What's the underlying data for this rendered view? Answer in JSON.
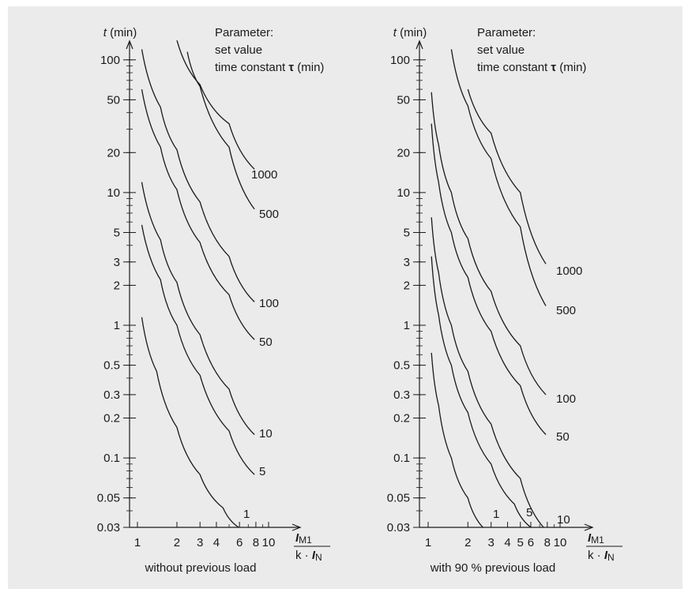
{
  "chart_data": [
    {
      "type": "line",
      "title": "",
      "y_axis": {
        "label_symbol": "t",
        "label_unit": "(min)",
        "scale": "log",
        "ylim": [
          0.03,
          160
        ],
        "ticks": [
          0.03,
          0.05,
          0.1,
          0.2,
          0.3,
          0.5,
          1,
          2,
          3,
          5,
          10,
          20,
          50,
          100
        ],
        "tick_labels": [
          "0.03",
          "0.05",
          "0.1",
          "0.2",
          "0.3",
          "0.5",
          "1",
          "2",
          "3",
          "5",
          "10",
          "20",
          "50",
          "100"
        ]
      },
      "x_axis": {
        "scale": "log",
        "xlim": [
          1,
          12
        ],
        "ticks": [
          1,
          2,
          3,
          4,
          6,
          8,
          10
        ],
        "tick_labels": [
          "1",
          "2",
          "3",
          "4",
          "6",
          "8",
          "10"
        ],
        "label_numerator_symbol": "I",
        "label_numerator_sub": "M1",
        "label_denominator_k": "k ·",
        "label_denominator_symbol": "I",
        "label_denominator_sub": "N"
      },
      "legend_text": [
        "Parameter:",
        "set value",
        "time constant τ (min)"
      ],
      "caption": "without previous load",
      "series": [
        {
          "name": "1",
          "points": [
            [
              1.08,
              1.15
            ],
            [
              1.4,
              0.45
            ],
            [
              2.0,
              0.17
            ],
            [
              3.0,
              0.075
            ],
            [
              4.5,
              0.042
            ],
            [
              5.9,
              0.03
            ]
          ]
        },
        {
          "name": "5",
          "points": [
            [
              1.08,
              5.7
            ],
            [
              1.5,
              2.2
            ],
            [
              2.0,
              1.0
            ],
            [
              3.0,
              0.42
            ],
            [
              5.0,
              0.16
            ],
            [
              7.8,
              0.075
            ]
          ]
        },
        {
          "name": "10",
          "points": [
            [
              1.08,
              12
            ],
            [
              1.5,
              4.4
            ],
            [
              2.0,
              2.1
            ],
            [
              3.0,
              0.85
            ],
            [
              5.0,
              0.33
            ],
            [
              7.8,
              0.15
            ]
          ]
        },
        {
          "name": "50",
          "points": [
            [
              1.08,
              60
            ],
            [
              1.5,
              22
            ],
            [
              2.0,
              10.5
            ],
            [
              3.0,
              4.2
            ],
            [
              5.0,
              1.7
            ],
            [
              7.8,
              0.78
            ]
          ]
        },
        {
          "name": "100",
          "points": [
            [
              1.08,
              120
            ],
            [
              1.5,
              44
            ],
            [
              2.0,
              21
            ],
            [
              3.0,
              8.5
            ],
            [
              5.0,
              3.3
            ],
            [
              7.8,
              1.5
            ]
          ]
        },
        {
          "name": "500",
          "points": [
            [
              2.4,
              115
            ],
            [
              3.0,
              63
            ],
            [
              5.0,
              22
            ],
            [
              7.8,
              7.5
            ]
          ]
        },
        {
          "name": "1000",
          "points": [
            [
              2.0,
              140
            ],
            [
              3.0,
              65
            ],
            [
              5.0,
              33
            ],
            [
              7.8,
              15
            ]
          ]
        }
      ]
    },
    {
      "type": "line",
      "title": "",
      "y_axis": {
        "label_symbol": "t",
        "label_unit": "(min)",
        "scale": "log",
        "ylim": [
          0.03,
          160
        ],
        "ticks": [
          0.03,
          0.05,
          0.1,
          0.2,
          0.3,
          0.5,
          1,
          2,
          3,
          5,
          10,
          20,
          50,
          100
        ],
        "tick_labels": [
          "0.03",
          "0.05",
          "0.1",
          "0.2",
          "0.3",
          "0.5",
          "1",
          "2",
          "3",
          "5",
          "10",
          "20",
          "50",
          "100"
        ]
      },
      "x_axis": {
        "scale": "log",
        "xlim": [
          1,
          12
        ],
        "ticks": [
          1,
          2,
          3,
          4,
          5,
          6,
          8,
          10
        ],
        "tick_labels": [
          "1",
          "2",
          "3",
          "4",
          "5",
          "6",
          "8",
          "10"
        ],
        "label_numerator_symbol": "I",
        "label_numerator_sub": "M1",
        "label_denominator_k": "k ·",
        "label_denominator_symbol": "I",
        "label_denominator_sub": "N"
      },
      "legend_text": [
        "Parameter:",
        "set value",
        "time constant τ (min)"
      ],
      "caption": "with 90 % previous load",
      "series": [
        {
          "name": "1",
          "points": [
            [
              1.06,
              0.62
            ],
            [
              1.2,
              0.25
            ],
            [
              1.5,
              0.1
            ],
            [
              2.0,
              0.05
            ],
            [
              2.6,
              0.03
            ]
          ]
        },
        {
          "name": "5",
          "points": [
            [
              1.06,
              3.3
            ],
            [
              1.2,
              1.2
            ],
            [
              1.5,
              0.5
            ],
            [
              2.0,
              0.22
            ],
            [
              3.0,
              0.09
            ],
            [
              4.5,
              0.045
            ],
            [
              6.0,
              0.03
            ]
          ]
        },
        {
          "name": "10",
          "points": [
            [
              1.06,
              6.5
            ],
            [
              1.2,
              2.5
            ],
            [
              1.5,
              1.0
            ],
            [
              2.0,
              0.45
            ],
            [
              3.0,
              0.18
            ],
            [
              5.0,
              0.07
            ],
            [
              7.5,
              0.03
            ]
          ]
        },
        {
          "name": "50",
          "points": [
            [
              1.06,
              33
            ],
            [
              1.2,
              12
            ],
            [
              1.5,
              5.0
            ],
            [
              2.0,
              2.3
            ],
            [
              3.0,
              0.9
            ],
            [
              5.0,
              0.35
            ],
            [
              7.8,
              0.15
            ]
          ]
        },
        {
          "name": "100",
          "points": [
            [
              1.06,
              57
            ],
            [
              1.2,
              23
            ],
            [
              1.5,
              10
            ],
            [
              2.0,
              4.5
            ],
            [
              3.0,
              1.8
            ],
            [
              5.0,
              0.7
            ],
            [
              7.8,
              0.3
            ]
          ]
        },
        {
          "name": "500",
          "points": [
            [
              1.5,
              120
            ],
            [
              2.0,
              45
            ],
            [
              3.0,
              18
            ],
            [
              5.0,
              5.5
            ],
            [
              7.8,
              1.4
            ]
          ]
        },
        {
          "name": "1000",
          "points": [
            [
              2.0,
              60
            ],
            [
              3.0,
              28
            ],
            [
              5.0,
              10
            ],
            [
              7.8,
              2.9
            ]
          ]
        }
      ]
    }
  ]
}
